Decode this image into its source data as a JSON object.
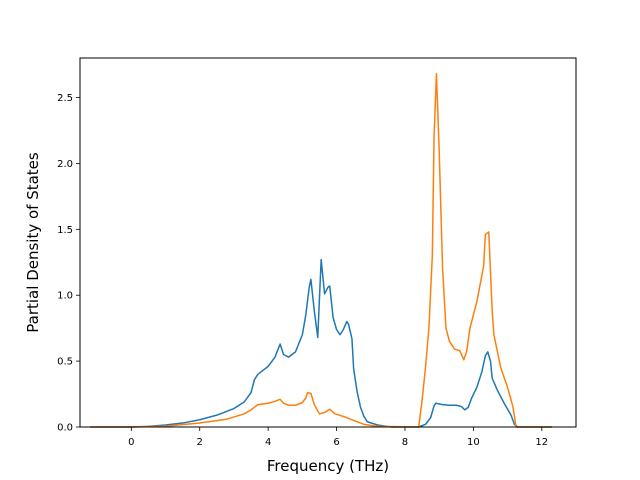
{
  "chart_data": {
    "type": "line",
    "title": "",
    "xlabel": "Frequency (THz)",
    "ylabel": "Partial Density of States",
    "xlim": [
      -1.5,
      13.0
    ],
    "ylim": [
      0.0,
      2.8
    ],
    "xticks": [
      0,
      2,
      4,
      6,
      8,
      10,
      12
    ],
    "xtick_labels": [
      "0",
      "2",
      "4",
      "6",
      "8",
      "10",
      "12"
    ],
    "yticks": [
      0.0,
      0.5,
      1.0,
      1.5,
      2.0,
      2.5
    ],
    "ytick_labels": [
      "0.0",
      "0.5",
      "1.0",
      "1.5",
      "2.0",
      "2.5"
    ],
    "grid": false,
    "series": [
      {
        "color": "#1f77b4",
        "points": [
          [
            -1.2,
            0.0
          ],
          [
            0.0,
            0.0
          ],
          [
            0.5,
            0.005
          ],
          [
            1.0,
            0.015
          ],
          [
            1.5,
            0.03
          ],
          [
            2.0,
            0.055
          ],
          [
            2.5,
            0.09
          ],
          [
            3.0,
            0.14
          ],
          [
            3.3,
            0.19
          ],
          [
            3.5,
            0.26
          ],
          [
            3.6,
            0.36
          ],
          [
            3.7,
            0.4
          ],
          [
            4.0,
            0.46
          ],
          [
            4.2,
            0.53
          ],
          [
            4.35,
            0.63
          ],
          [
            4.45,
            0.55
          ],
          [
            4.6,
            0.53
          ],
          [
            4.8,
            0.57
          ],
          [
            5.0,
            0.7
          ],
          [
            5.1,
            0.85
          ],
          [
            5.2,
            1.06
          ],
          [
            5.25,
            1.12
          ],
          [
            5.35,
            0.88
          ],
          [
            5.45,
            0.68
          ],
          [
            5.55,
            1.27
          ],
          [
            5.65,
            1.01
          ],
          [
            5.75,
            1.06
          ],
          [
            5.8,
            1.07
          ],
          [
            5.9,
            0.83
          ],
          [
            6.0,
            0.74
          ],
          [
            6.1,
            0.7
          ],
          [
            6.2,
            0.74
          ],
          [
            6.3,
            0.8
          ],
          [
            6.35,
            0.78
          ],
          [
            6.45,
            0.67
          ],
          [
            6.5,
            0.44
          ],
          [
            6.6,
            0.27
          ],
          [
            6.7,
            0.15
          ],
          [
            6.8,
            0.08
          ],
          [
            6.9,
            0.04
          ],
          [
            7.2,
            0.015
          ],
          [
            7.6,
            0.0
          ],
          [
            8.4,
            0.0
          ],
          [
            8.6,
            0.02
          ],
          [
            8.75,
            0.07
          ],
          [
            8.85,
            0.16
          ],
          [
            8.9,
            0.18
          ],
          [
            9.1,
            0.17
          ],
          [
            9.3,
            0.165
          ],
          [
            9.5,
            0.165
          ],
          [
            9.65,
            0.155
          ],
          [
            9.75,
            0.13
          ],
          [
            9.85,
            0.15
          ],
          [
            9.95,
            0.22
          ],
          [
            10.1,
            0.3
          ],
          [
            10.25,
            0.42
          ],
          [
            10.35,
            0.54
          ],
          [
            10.42,
            0.57
          ],
          [
            10.5,
            0.5
          ],
          [
            10.55,
            0.37
          ],
          [
            10.7,
            0.28
          ],
          [
            10.9,
            0.18
          ],
          [
            11.1,
            0.09
          ],
          [
            11.2,
            0.02
          ],
          [
            11.3,
            0.0
          ],
          [
            12.3,
            0.0
          ]
        ]
      },
      {
        "color": "#ff7f0e",
        "points": [
          [
            -1.2,
            0.0
          ],
          [
            0.0,
            0.0
          ],
          [
            1.0,
            0.006
          ],
          [
            2.0,
            0.03
          ],
          [
            2.8,
            0.06
          ],
          [
            3.3,
            0.1
          ],
          [
            3.5,
            0.13
          ],
          [
            3.7,
            0.17
          ],
          [
            4.0,
            0.18
          ],
          [
            4.2,
            0.195
          ],
          [
            4.35,
            0.21
          ],
          [
            4.45,
            0.18
          ],
          [
            4.6,
            0.165
          ],
          [
            4.8,
            0.165
          ],
          [
            5.0,
            0.185
          ],
          [
            5.1,
            0.22
          ],
          [
            5.15,
            0.26
          ],
          [
            5.25,
            0.255
          ],
          [
            5.35,
            0.17
          ],
          [
            5.5,
            0.1
          ],
          [
            5.65,
            0.11
          ],
          [
            5.8,
            0.135
          ],
          [
            5.95,
            0.1
          ],
          [
            6.2,
            0.08
          ],
          [
            6.5,
            0.05
          ],
          [
            6.8,
            0.02
          ],
          [
            7.2,
            0.005
          ],
          [
            8.4,
            0.0
          ],
          [
            8.5,
            0.2
          ],
          [
            8.6,
            0.45
          ],
          [
            8.7,
            0.75
          ],
          [
            8.8,
            1.3
          ],
          [
            8.85,
            2.2
          ],
          [
            8.92,
            2.68
          ],
          [
            9.0,
            2.1
          ],
          [
            9.1,
            1.2
          ],
          [
            9.2,
            0.75
          ],
          [
            9.3,
            0.65
          ],
          [
            9.45,
            0.59
          ],
          [
            9.6,
            0.58
          ],
          [
            9.72,
            0.51
          ],
          [
            9.8,
            0.57
          ],
          [
            9.9,
            0.75
          ],
          [
            10.1,
            0.95
          ],
          [
            10.3,
            1.22
          ],
          [
            10.35,
            1.46
          ],
          [
            10.45,
            1.48
          ],
          [
            10.55,
            0.88
          ],
          [
            10.6,
            0.7
          ],
          [
            10.8,
            0.45
          ],
          [
            11.0,
            0.3
          ],
          [
            11.15,
            0.16
          ],
          [
            11.25,
            0.0
          ],
          [
            12.3,
            0.0
          ]
        ]
      }
    ]
  }
}
